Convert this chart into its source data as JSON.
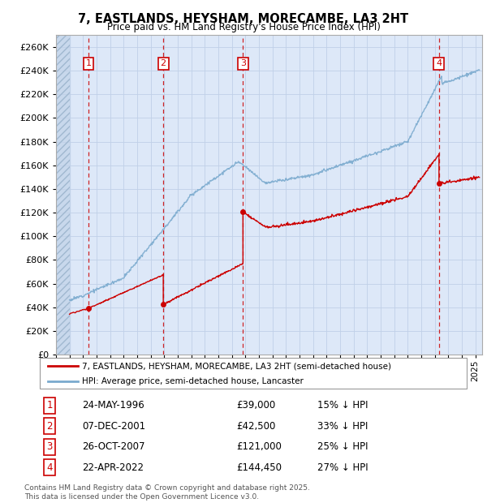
{
  "title_line1": "7, EASTLANDS, HEYSHAM, MORECAMBE, LA3 2HT",
  "title_line2": "Price paid vs. HM Land Registry's House Price Index (HPI)",
  "ylim": [
    0,
    270000
  ],
  "yticks": [
    0,
    20000,
    40000,
    60000,
    80000,
    100000,
    120000,
    140000,
    160000,
    180000,
    200000,
    220000,
    240000,
    260000
  ],
  "ytick_labels": [
    "£0",
    "£20K",
    "£40K",
    "£60K",
    "£80K",
    "£100K",
    "£120K",
    "£140K",
    "£160K",
    "£180K",
    "£200K",
    "£220K",
    "£240K",
    "£260K"
  ],
  "xlim_start": 1994.0,
  "xlim_end": 2025.5,
  "sale_dates_num": [
    1996.39,
    2001.93,
    2007.82,
    2022.31
  ],
  "sale_prices": [
    39000,
    42500,
    121000,
    144450
  ],
  "sale_labels": [
    "1",
    "2",
    "3",
    "4"
  ],
  "sale_date_str": [
    "24-MAY-1996",
    "07-DEC-2001",
    "26-OCT-2007",
    "22-APR-2022"
  ],
  "sale_price_str": [
    "£39,000",
    "£42,500",
    "£121,000",
    "£144,450"
  ],
  "sale_pct_str": [
    "15% ↓ HPI",
    "33% ↓ HPI",
    "25% ↓ HPI",
    "27% ↓ HPI"
  ],
  "red_color": "#cc0000",
  "blue_color": "#7aaace",
  "grid_color": "#c0d0e8",
  "bg_color": "#dde8f8",
  "legend_line1": "7, EASTLANDS, HEYSHAM, MORECAMBE, LA3 2HT (semi-detached house)",
  "legend_line2": "HPI: Average price, semi-detached house, Lancaster",
  "footnote": "Contains HM Land Registry data © Crown copyright and database right 2025.\nThis data is licensed under the Open Government Licence v3.0."
}
